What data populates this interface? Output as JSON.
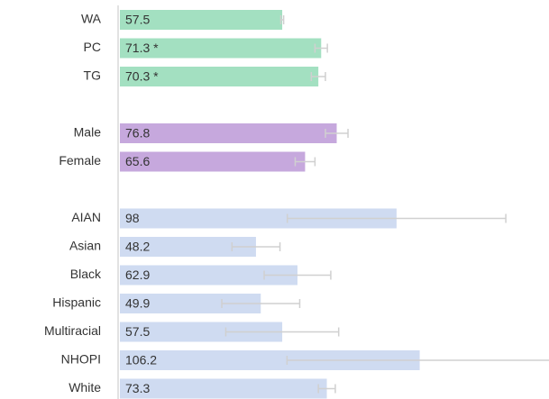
{
  "chart_data": {
    "type": "bar",
    "orientation": "horizontal",
    "categories": [
      "WA",
      "PC",
      "TG",
      null,
      "Male",
      "Female",
      null,
      "AIAN",
      "Asian",
      "Black",
      "Hispanic",
      "Multiracial",
      "NHOPI",
      "White"
    ],
    "values": [
      57.5,
      71.3,
      70.3,
      null,
      76.8,
      65.6,
      null,
      98,
      48.2,
      62.9,
      49.9,
      57.5,
      106.2,
      73.3
    ],
    "value_labels": [
      "57.5",
      "71.3 *",
      "70.3 *",
      null,
      "76.8",
      "65.6",
      null,
      "98",
      "48.2",
      "62.9",
      "49.9",
      "57.5",
      "106.2",
      "73.3"
    ],
    "errors": [
      0.5,
      2.2,
      2.5,
      null,
      4,
      3.5,
      null,
      38.7,
      8.5,
      11.8,
      13.8,
      20,
      47,
      3
    ],
    "colors": [
      "#a3e0c1",
      "#a3e0c1",
      "#a3e0c1",
      null,
      "#c6a8dd",
      "#c6a8dd",
      null,
      "#cfdbf1",
      "#cfdbf1",
      "#cfdbf1",
      "#cfdbf1",
      "#cfdbf1",
      "#cfdbf1",
      "#cfdbf1"
    ],
    "error_color": "#d0d0d0",
    "xlim": [
      0,
      152
    ]
  }
}
